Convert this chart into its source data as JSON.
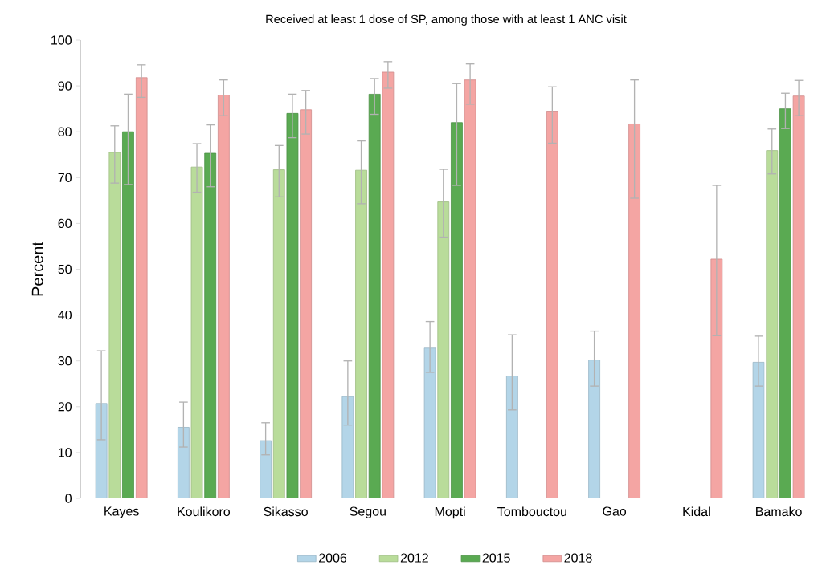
{
  "chart_data": {
    "type": "bar",
    "title": "Received at least 1 dose of SP, among those with at least 1 ANC visit",
    "ylabel": "Percent",
    "categories": [
      "Kayes",
      "Koulikoro",
      "Sikasso",
      "Segou",
      "Mopti",
      "Tombouctou",
      "Gao",
      "Kidal",
      "Bamako"
    ],
    "series": [
      {
        "name": "2006",
        "color": "#b3d5e8",
        "values": [
          20.7,
          15.5,
          12.6,
          22.2,
          32.8,
          26.7,
          30.2,
          null,
          29.7
        ],
        "errors": [
          [
            12.8,
            32.2
          ],
          [
            11.2,
            21.0
          ],
          [
            9.5,
            16.5
          ],
          [
            16.0,
            30.0
          ],
          [
            27.5,
            38.6
          ],
          [
            19.3,
            35.7
          ],
          [
            24.5,
            36.5
          ],
          null,
          [
            24.5,
            35.4
          ]
        ]
      },
      {
        "name": "2012",
        "color": "#b9dc9a",
        "values": [
          75.5,
          72.3,
          71.7,
          71.6,
          64.7,
          null,
          null,
          null,
          75.9
        ],
        "errors": [
          [
            68.8,
            81.3
          ],
          [
            66.8,
            77.4
          ],
          [
            65.8,
            77.0
          ],
          [
            64.3,
            78.0
          ],
          [
            57.0,
            71.8
          ],
          null,
          null,
          null,
          [
            70.8,
            80.6
          ]
        ]
      },
      {
        "name": "2015",
        "color": "#5aaa52",
        "values": [
          80.0,
          75.3,
          84.0,
          88.2,
          82.0,
          null,
          null,
          null,
          85.0
        ],
        "errors": [
          [
            68.5,
            88.2
          ],
          [
            68.0,
            81.5
          ],
          [
            78.7,
            88.2
          ],
          [
            83.8,
            91.6
          ],
          [
            68.3,
            90.5
          ],
          null,
          null,
          null,
          [
            80.7,
            88.4
          ]
        ]
      },
      {
        "name": "2018",
        "color": "#f4a5a3",
        "values": [
          91.8,
          88.0,
          84.8,
          93.0,
          91.3,
          84.5,
          81.7,
          52.2,
          87.8
        ],
        "errors": [
          [
            87.5,
            94.6
          ],
          [
            83.5,
            91.3
          ],
          [
            79.5,
            89.0
          ],
          [
            89.5,
            95.3
          ],
          [
            86.0,
            94.8
          ],
          [
            77.5,
            89.8
          ],
          [
            65.5,
            91.3
          ],
          [
            35.5,
            68.3
          ],
          [
            83.5,
            91.2
          ]
        ]
      }
    ],
    "ylim": [
      0,
      100
    ],
    "yticks": [
      0,
      10,
      20,
      30,
      40,
      50,
      60,
      70,
      80,
      90,
      100
    ],
    "legend": "bottom"
  }
}
